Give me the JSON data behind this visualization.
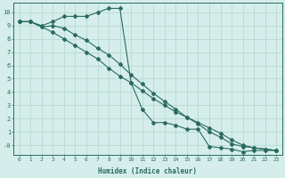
{
  "xlabel": "Humidex (Indice chaleur)",
  "xlim": [
    -0.5,
    23.5
  ],
  "ylim": [
    -0.7,
    10.7
  ],
  "xticks": [
    0,
    1,
    2,
    3,
    4,
    5,
    6,
    7,
    8,
    9,
    10,
    11,
    12,
    13,
    14,
    15,
    16,
    17,
    18,
    19,
    20,
    21,
    22,
    23
  ],
  "yticks": [
    0,
    1,
    2,
    3,
    4,
    5,
    6,
    7,
    8,
    9,
    10
  ],
  "ytick_labels": [
    "-0",
    "1",
    "2",
    "3",
    "4",
    "5",
    "6",
    "7",
    "8",
    "9",
    "10"
  ],
  "bg_color": "#d5eeeb",
  "grid_color": "#b8d9d3",
  "line_color": "#2a6b5e",
  "line1_x": [
    0,
    1,
    2,
    3,
    4,
    5,
    6,
    7,
    8,
    9,
    10,
    11,
    12,
    13,
    14,
    15,
    16,
    17,
    18,
    19,
    20,
    21,
    22,
    23
  ],
  "line1_y": [
    9.3,
    9.3,
    9.0,
    9.3,
    9.7,
    9.7,
    9.7,
    10.0,
    10.3,
    10.3,
    4.7,
    2.7,
    1.7,
    1.7,
    1.5,
    1.2,
    1.2,
    -0.1,
    -0.2,
    -0.3,
    -0.5,
    -0.4,
    -0.4,
    -0.4
  ],
  "line2_x": [
    0,
    1,
    3,
    4,
    5,
    6,
    7,
    8,
    9,
    10,
    11,
    12,
    13,
    14,
    15,
    16,
    17,
    18,
    19,
    20,
    21,
    22,
    23
  ],
  "line2_y": [
    9.3,
    9.3,
    8.5,
    8.0,
    7.5,
    7.0,
    6.5,
    5.8,
    5.2,
    4.7,
    4.1,
    3.5,
    3.0,
    2.5,
    2.1,
    1.7,
    1.3,
    0.9,
    0.4,
    0.0,
    -0.2,
    -0.3,
    -0.4
  ],
  "line3_x": [
    0,
    1,
    2,
    3,
    4,
    5,
    6,
    7,
    8,
    9,
    10,
    11,
    12,
    13,
    14,
    15,
    16,
    17,
    18,
    19,
    20,
    21,
    22,
    23
  ],
  "line3_y": [
    9.3,
    9.3,
    8.9,
    9.0,
    8.8,
    8.3,
    7.9,
    7.3,
    6.8,
    6.1,
    5.3,
    4.6,
    3.9,
    3.3,
    2.7,
    2.1,
    1.6,
    1.0,
    0.6,
    0.1,
    -0.1,
    -0.2,
    -0.3,
    -0.4
  ]
}
